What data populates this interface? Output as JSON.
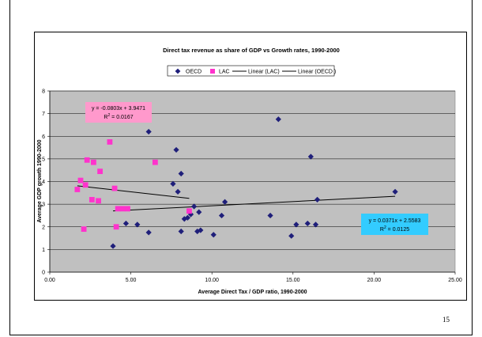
{
  "page_number": "15",
  "colors": {
    "oecd": "#1f1f7a",
    "lac": "#ff33cc",
    "plot_bg": "#c0c0c0",
    "lac_box": "#ff99cc",
    "oecd_box": "#33ccff"
  },
  "chart_data": {
    "type": "scatter",
    "title": "Direct tax revenue as share of GDP vs Growth rates, 1990-2000",
    "xlabel": "Average Direct Tax / GDP ratio, 1990-2000",
    "ylabel": "Average GDP growth 1990-2000",
    "xlim": [
      0,
      25
    ],
    "ylim": [
      0,
      8
    ],
    "xticks": [
      "0.00",
      "5.00",
      "10.00",
      "15.00",
      "20.00",
      "25.00"
    ],
    "yticks": [
      "0",
      "1",
      "2",
      "3",
      "4",
      "5",
      "6",
      "7",
      "8"
    ],
    "grid": true,
    "legend_placement": "top",
    "legend": [
      "OECD",
      "LAC",
      "Linear (LAC)",
      "Linear (OECD )"
    ],
    "series": [
      {
        "name": "OECD",
        "marker": "diamond",
        "points": [
          [
            3.9,
            1.15
          ],
          [
            4.7,
            2.15
          ],
          [
            5.4,
            2.1
          ],
          [
            6.1,
            1.75
          ],
          [
            6.1,
            6.2
          ],
          [
            7.6,
            3.9
          ],
          [
            7.8,
            5.4
          ],
          [
            7.9,
            3.55
          ],
          [
            8.1,
            4.35
          ],
          [
            8.1,
            1.8
          ],
          [
            8.3,
            2.35
          ],
          [
            8.5,
            2.4
          ],
          [
            8.7,
            2.55
          ],
          [
            8.9,
            2.9
          ],
          [
            9.1,
            1.8
          ],
          [
            9.2,
            2.65
          ],
          [
            9.3,
            1.85
          ],
          [
            10.1,
            1.65
          ],
          [
            10.6,
            2.5
          ],
          [
            10.8,
            3.1
          ],
          [
            13.6,
            2.5
          ],
          [
            14.1,
            6.75
          ],
          [
            14.9,
            1.6
          ],
          [
            15.2,
            2.1
          ],
          [
            15.9,
            2.15
          ],
          [
            16.1,
            5.1
          ],
          [
            16.4,
            2.1
          ],
          [
            16.5,
            3.2
          ],
          [
            21.3,
            3.55
          ]
        ]
      },
      {
        "name": "LAC",
        "marker": "square",
        "points": [
          [
            1.7,
            3.65
          ],
          [
            1.9,
            4.05
          ],
          [
            2.1,
            1.9
          ],
          [
            2.2,
            3.85
          ],
          [
            2.3,
            4.95
          ],
          [
            2.6,
            3.2
          ],
          [
            2.7,
            4.85
          ],
          [
            3.0,
            3.15
          ],
          [
            3.1,
            4.45
          ],
          [
            3.7,
            5.75
          ],
          [
            4.0,
            3.7
          ],
          [
            4.1,
            2.0
          ],
          [
            4.2,
            2.8
          ],
          [
            4.5,
            2.8
          ],
          [
            4.8,
            2.8
          ],
          [
            6.5,
            4.85
          ],
          [
            8.6,
            2.7
          ]
        ]
      }
    ],
    "trendlines": [
      {
        "name": "Linear (LAC)",
        "slope": -0.0803,
        "intercept": 3.9471,
        "x_range": [
          1.7,
          8.6
        ],
        "equation": "y = -0.0803x + 3.9471",
        "r2_label": "R",
        "r2_value": " = 0.0167"
      },
      {
        "name": "Linear (OECD )",
        "slope": 0.0371,
        "intercept": 2.5583,
        "x_range": [
          3.9,
          21.3
        ],
        "equation": "y = 0.0371x + 2.5583",
        "r2_label": "R",
        "r2_value": " = 0.0125"
      }
    ]
  }
}
